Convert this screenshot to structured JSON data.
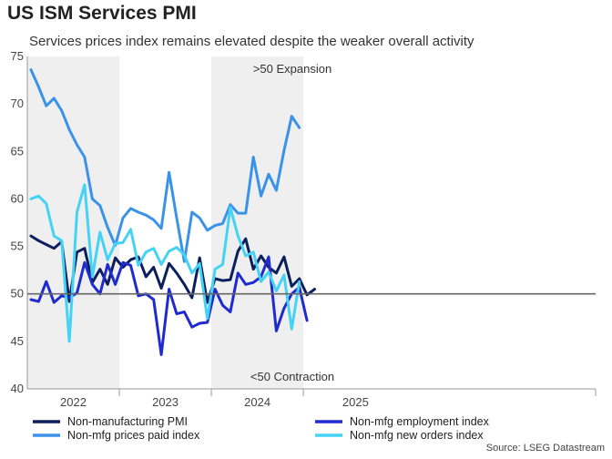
{
  "chart_data": {
    "type": "line",
    "title": "US ISM Services PMI",
    "subtitle": "Services prices index remains elevated despite the weaker overall activity",
    "source": "Source: LSEG Datastream",
    "ylim": [
      40,
      75
    ],
    "yticks": [
      "75",
      "70",
      "65",
      "60",
      "55",
      "50",
      "45",
      "40"
    ],
    "year_labels": [
      "2022",
      "2023",
      "2024",
      "2025"
    ],
    "reference_line": 50,
    "annotations": {
      "top": ">50 Expansion",
      "bottom": "<50 Contraction"
    },
    "months_start": "2022-01",
    "series": [
      {
        "name": "Non-manufacturing PMI",
        "color": "#0b1f5c",
        "values": [
          56.1,
          55.6,
          55.2,
          54.8,
          55.5,
          49.2,
          54.4,
          54.8,
          51.2,
          52.6,
          51.0,
          53.8,
          52.8,
          53.6,
          53.9,
          51.8,
          52.8,
          50.6,
          53.2,
          52.2,
          51.0,
          49.6,
          53.8,
          49.1,
          51.6,
          51.4,
          51.5,
          54.5,
          55.8,
          52.6,
          54.0,
          52.8,
          52.2,
          53.9,
          50.8,
          51.6,
          49.9,
          50.5
        ]
      },
      {
        "name": "Non-mfg employment index",
        "color": "#1f2bd0",
        "values": [
          49.4,
          49.2,
          51.3,
          49.1,
          49.8,
          49.6,
          50.1,
          53.3,
          51.0,
          50.0,
          53.1,
          51.0,
          53.3,
          53.0,
          49.8,
          50.0,
          49.4,
          43.6,
          50.5,
          47.9,
          48.1,
          46.5,
          46.9,
          47.0,
          50.5,
          48.8,
          48.1,
          52.2,
          51.0,
          51.2,
          51.8,
          53.9,
          46.1,
          48.5,
          50.0,
          50.7,
          47.2
        ]
      },
      {
        "name": "Non-mfg prices paid index",
        "color": "#3a93e8",
        "values": [
          73.6,
          71.8,
          69.8,
          70.6,
          69.3,
          67.3,
          65.7,
          64.4,
          60.0,
          59.3,
          57.0,
          55.1,
          58.0,
          59.0,
          58.6,
          58.3,
          57.8,
          56.9,
          62.8,
          58.0,
          53.4,
          58.6,
          58.0,
          56.7,
          57.2,
          57.4,
          59.4,
          58.5,
          58.5,
          64.4,
          60.3,
          62.6,
          60.9,
          65.1,
          68.7,
          67.5
        ]
      },
      {
        "name": "Non-mfg new orders index",
        "color": "#45d3f5",
        "values": [
          60.0,
          60.3,
          59.5,
          56.1,
          55.6,
          45.0,
          58.6,
          61.5,
          51.8,
          56.5,
          53.6,
          55.3,
          55.4,
          56.8,
          53.0,
          54.4,
          54.8,
          53.1,
          54.5,
          54.9,
          54.1,
          52.2,
          53.2,
          47.4,
          52.6,
          53.1,
          59.1,
          56.1,
          54.0,
          54.4,
          51.3,
          52.3,
          50.3,
          52.0,
          46.3,
          51.3
        ]
      }
    ]
  }
}
